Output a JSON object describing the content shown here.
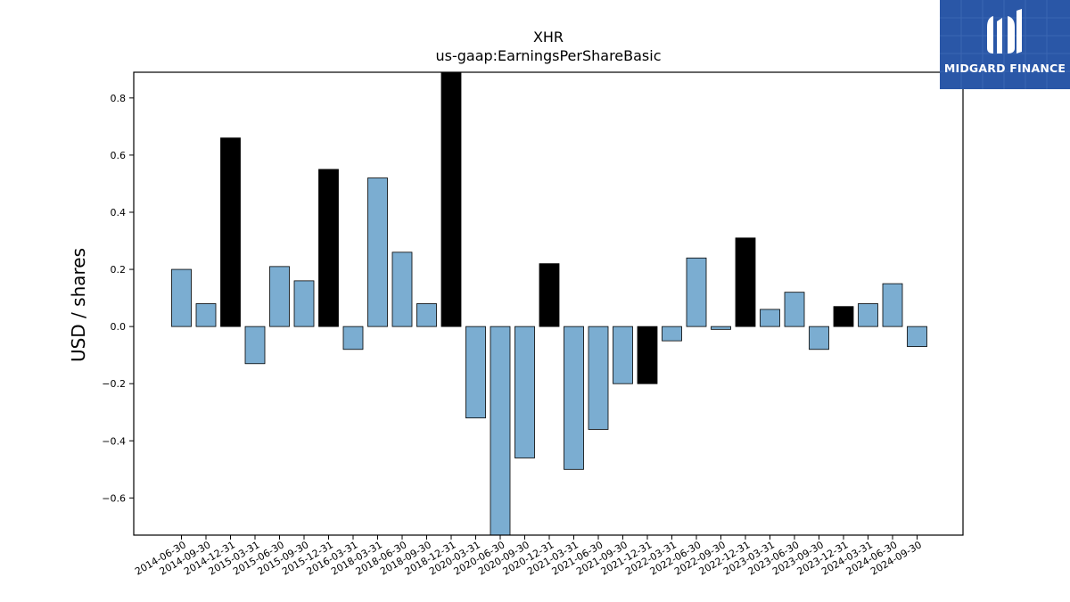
{
  "logo": {
    "text": "MIDGARD FINANCE",
    "background": "#2a57a7"
  },
  "chart_data": {
    "type": "bar",
    "title": "XHR",
    "subtitle": "us-gaap:EarningsPerShareBasic",
    "xlabel": "",
    "ylabel": "USD / shares",
    "ylim": [
      -0.73,
      0.89
    ],
    "yticks": [
      -0.6,
      -0.4,
      -0.2,
      0.0,
      0.2,
      0.4,
      0.6,
      0.8
    ],
    "ytick_labels": [
      "−0.6",
      "−0.4",
      "−0.2",
      "0.0",
      "0.2",
      "0.4",
      "0.6",
      "0.8"
    ],
    "grid": false,
    "colors": {
      "quarter": "#7badd1",
      "annual": "#000000",
      "edge": "#000000"
    },
    "categories": [
      "2014-06-30",
      "2014-09-30",
      "2014-12-31",
      "2015-03-31",
      "2015-06-30",
      "2015-09-30",
      "2015-12-31",
      "2016-03-31",
      "2018-03-31",
      "2018-06-30",
      "2018-09-30",
      "2018-12-31",
      "2020-03-31",
      "2020-06-30",
      "2020-09-30",
      "2020-12-31",
      "2021-03-31",
      "2021-06-30",
      "2021-09-30",
      "2021-12-31",
      "2022-03-31",
      "2022-06-30",
      "2022-09-30",
      "2022-12-31",
      "2023-03-31",
      "2023-06-30",
      "2023-09-30",
      "2023-12-31",
      "2024-03-31",
      "2024-06-30",
      "2024-09-30"
    ],
    "values": [
      0.2,
      0.08,
      0.66,
      -0.13,
      0.21,
      0.16,
      0.55,
      -0.08,
      0.52,
      0.26,
      0.08,
      0.89,
      -0.32,
      -0.73,
      -0.46,
      0.22,
      -0.5,
      -0.36,
      -0.2,
      -0.2,
      -0.05,
      0.24,
      -0.01,
      0.31,
      0.06,
      0.12,
      -0.08,
      0.07,
      0.08,
      0.15,
      -0.07
    ],
    "annual": [
      false,
      false,
      true,
      false,
      false,
      false,
      true,
      false,
      false,
      false,
      false,
      true,
      false,
      false,
      false,
      true,
      false,
      false,
      false,
      true,
      false,
      false,
      false,
      true,
      false,
      false,
      false,
      true,
      false,
      false,
      false
    ]
  }
}
